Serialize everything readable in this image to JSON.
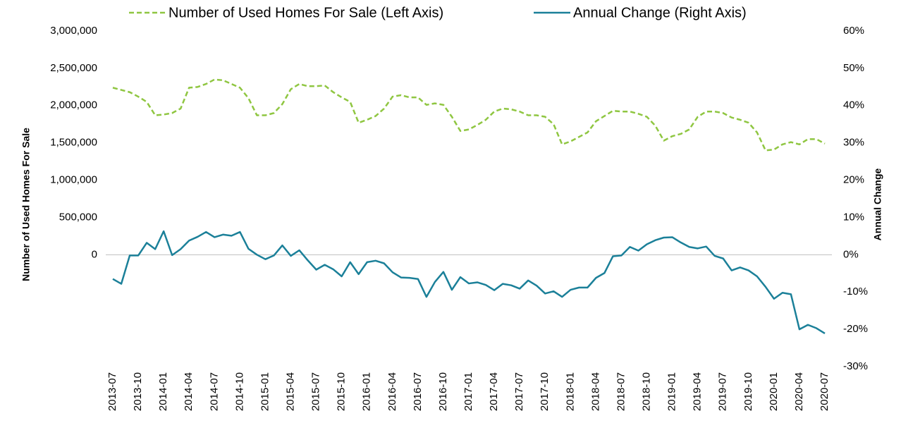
{
  "chart_data": {
    "type": "line",
    "y_label": "Number of Used Homes For Sale",
    "y2_label": "Annual Change",
    "categories": [
      "2013-07",
      null,
      null,
      "2013-10",
      null,
      null,
      "2014-01",
      null,
      null,
      "2014-04",
      null,
      null,
      "2014-07",
      null,
      null,
      "2014-10",
      null,
      null,
      "2015-01",
      null,
      null,
      "2015-04",
      null,
      null,
      "2015-07",
      null,
      null,
      "2015-10",
      null,
      null,
      "2016-01",
      null,
      null,
      "2016-04",
      null,
      null,
      "2016-07",
      null,
      null,
      "2016-10",
      null,
      null,
      "2017-01",
      null,
      null,
      "2017-04",
      null,
      null,
      "2017-07",
      null,
      null,
      "2017-10",
      null,
      null,
      "2018-01",
      null,
      null,
      "2018-04",
      null,
      null,
      "2018-07",
      null,
      null,
      "2018-10",
      null,
      null,
      "2019-01",
      null,
      null,
      "2019-04",
      null,
      null,
      "2019-07",
      null,
      null,
      "2019-10",
      null,
      null,
      "2020-01",
      null,
      null,
      "2020-04",
      null,
      null,
      "2020-07"
    ],
    "series": [
      {
        "name": "Number of Used Homes For Sale (Left Axis)",
        "color": "#8fc641",
        "line_style": "dashed",
        "axis": "y",
        "values": [
          2240000,
          2210000,
          2180000,
          2120000,
          2050000,
          1870000,
          1880000,
          1900000,
          1960000,
          2240000,
          2250000,
          2290000,
          2350000,
          2340000,
          2290000,
          2240000,
          2100000,
          1870000,
          1870000,
          1900000,
          2020000,
          2220000,
          2290000,
          2260000,
          2260000,
          2270000,
          2180000,
          2110000,
          2050000,
          1770000,
          1810000,
          1860000,
          1960000,
          2120000,
          2140000,
          2110000,
          2110000,
          2010000,
          2030000,
          2010000,
          1850000,
          1660000,
          1680000,
          1740000,
          1810000,
          1920000,
          1960000,
          1950000,
          1920000,
          1870000,
          1870000,
          1850000,
          1750000,
          1480000,
          1520000,
          1580000,
          1640000,
          1790000,
          1860000,
          1930000,
          1920000,
          1920000,
          1890000,
          1850000,
          1730000,
          1530000,
          1590000,
          1620000,
          1680000,
          1850000,
          1920000,
          1920000,
          1900000,
          1840000,
          1810000,
          1770000,
          1640000,
          1400000,
          1410000,
          1480000,
          1510000,
          1480000,
          1550000,
          1550000,
          1490000
        ]
      },
      {
        "name": "Annual Change (Right Axis)",
        "color": "#1b8099",
        "line_style": "solid",
        "axis": "y2",
        "values": [
          -6.5,
          -7.8,
          -0.2,
          -0.2,
          3.2,
          1.5,
          6.3,
          -0.1,
          1.5,
          3.8,
          4.8,
          6.1,
          4.7,
          5.4,
          5.1,
          6.1,
          1.6,
          0.0,
          -1.2,
          -0.2,
          2.5,
          -0.3,
          1.2,
          -1.5,
          -4.0,
          -2.7,
          -3.9,
          -5.8,
          -2.0,
          -5.2,
          -2.0,
          -1.6,
          -2.3,
          -4.7,
          -6.1,
          -6.2,
          -6.5,
          -11.3,
          -7.3,
          -4.6,
          -9.4,
          -6.0,
          -7.7,
          -7.4,
          -8.1,
          -9.5,
          -7.8,
          -8.2,
          -9.1,
          -6.9,
          -8.3,
          -10.4,
          -9.8,
          -11.3,
          -9.4,
          -8.8,
          -8.8,
          -6.2,
          -4.9,
          -0.4,
          -0.2,
          2.1,
          1.1,
          2.8,
          3.9,
          4.6,
          4.7,
          3.3,
          2.1,
          1.7,
          2.2,
          -0.3,
          -1.0,
          -4.2,
          -3.4,
          -4.2,
          -5.8,
          -8.6,
          -11.8,
          -10.2,
          -10.6,
          -20.0,
          -18.8,
          -19.7,
          -21.1
        ]
      }
    ],
    "ylim": [
      -1500000,
      3000000
    ],
    "yticks": [
      0,
      {
        "value": 500000,
        "label": "500,000"
      },
      {
        "value": 1000000,
        "label": "1,000,000"
      },
      {
        "value": 1500000,
        "label": "1,500,000"
      },
      {
        "value": 2000000,
        "label": "2,000,000"
      },
      {
        "value": 2500000,
        "label": "2,500,000"
      },
      {
        "value": 3000000,
        "label": "3,000,000"
      }
    ],
    "y2lim": [
      -30,
      60
    ],
    "y2ticks": [
      {
        "value": -30,
        "label": "-30%"
      },
      {
        "value": -20,
        "label": "-20%"
      },
      {
        "value": -10,
        "label": "-10%"
      },
      {
        "value": 0,
        "label": "0%"
      },
      {
        "value": 10,
        "label": "10%"
      },
      {
        "value": 20,
        "label": "20%"
      },
      {
        "value": 30,
        "label": "30%"
      },
      {
        "value": 40,
        "label": "40%"
      },
      {
        "value": 50,
        "label": "50%"
      },
      {
        "value": 60,
        "label": "60%"
      }
    ],
    "legend": "top"
  }
}
